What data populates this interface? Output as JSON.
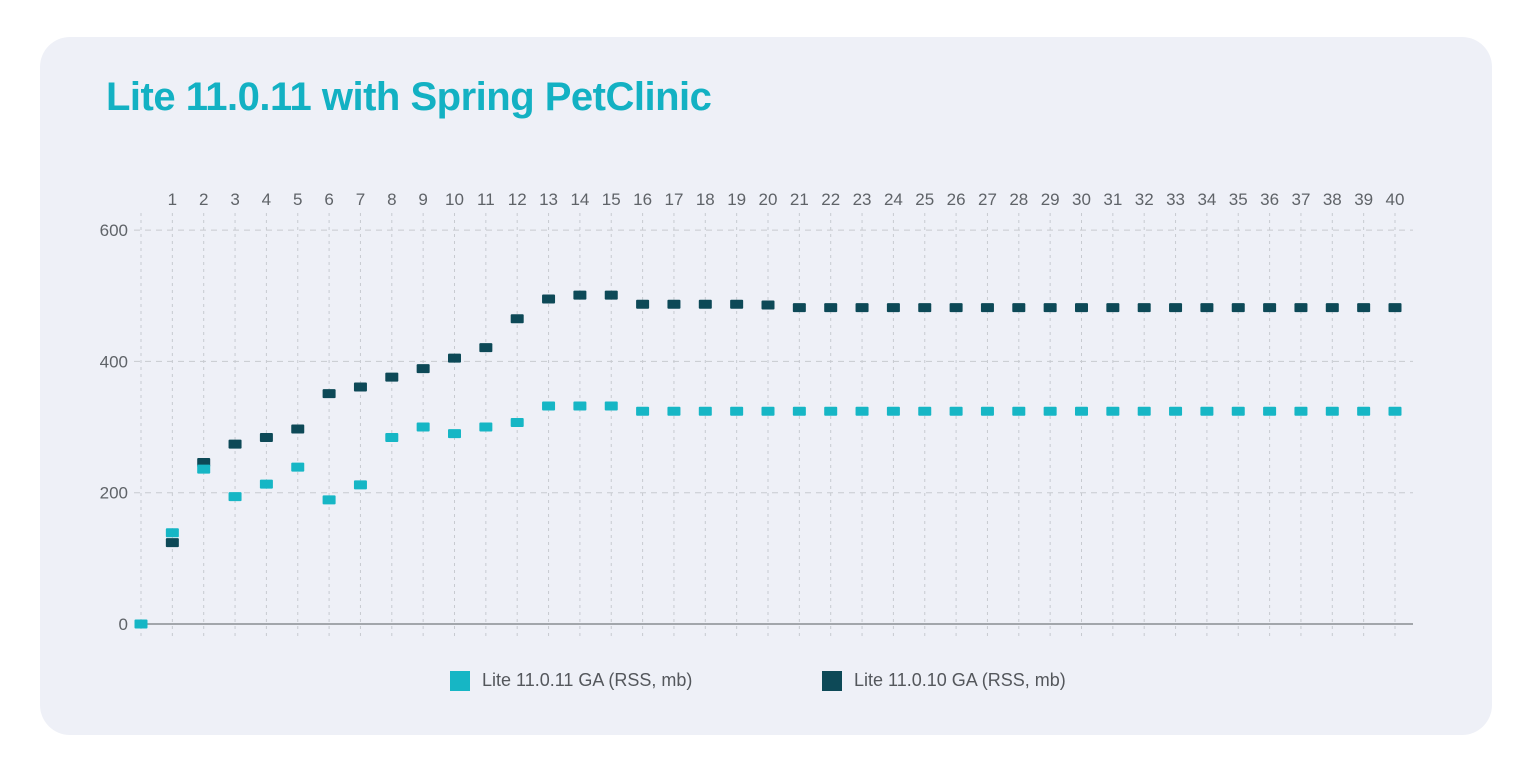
{
  "title": "Lite 11.0.11 with Spring PetClinic",
  "colors": {
    "title": "#13b1c3",
    "card_background": "#eef0f7",
    "grid_line": "#c7cad0",
    "axis_line": "#a2a6ab",
    "tick_label": "#5f6368",
    "legend_text": "#54575c",
    "series_lite_11_0_11": "#16b6c5",
    "series_lite_11_0_10": "#0d4957"
  },
  "legend": {
    "items": [
      {
        "label": "Lite 11.0.11 GA (RSS, mb)",
        "color": "#16b6c5"
      },
      {
        "label": "Lite 11.0.10 GA (RSS, mb)",
        "color": "#0d4957"
      }
    ]
  },
  "chart_data": {
    "type": "scatter",
    "title": "Lite 11.0.11 with Spring PetClinic",
    "xlabel": "",
    "ylabel": "",
    "x_ticks": [
      1,
      2,
      3,
      4,
      5,
      6,
      7,
      8,
      9,
      10,
      11,
      12,
      13,
      14,
      15,
      16,
      17,
      18,
      19,
      20,
      21,
      22,
      23,
      24,
      25,
      26,
      27,
      28,
      29,
      30,
      31,
      32,
      33,
      34,
      35,
      36,
      37,
      38,
      39,
      40
    ],
    "y_ticks": [
      0,
      200,
      400,
      600
    ],
    "xlim": [
      0,
      40.5
    ],
    "ylim": [
      0,
      660
    ],
    "grid": "dashed",
    "x_axis_position": "top-labels",
    "legend_position": "bottom",
    "point_shape": "square",
    "series": [
      {
        "name": "Lite 11.0.11 GA (RSS, mb)",
        "color": "#16b6c5",
        "points": [
          [
            0,
            0
          ],
          [
            1,
            139
          ],
          [
            2,
            236
          ],
          [
            3,
            194
          ],
          [
            4,
            213
          ],
          [
            5,
            239
          ],
          [
            6,
            189
          ],
          [
            7,
            212
          ],
          [
            8,
            284
          ],
          [
            9,
            300
          ],
          [
            10,
            290
          ],
          [
            11,
            300
          ],
          [
            12,
            307
          ],
          [
            13,
            332
          ],
          [
            14,
            332
          ],
          [
            15,
            332
          ],
          [
            16,
            324
          ],
          [
            17,
            324
          ],
          [
            18,
            324
          ],
          [
            19,
            324
          ],
          [
            20,
            324
          ],
          [
            21,
            324
          ],
          [
            22,
            324
          ],
          [
            23,
            324
          ],
          [
            24,
            324
          ],
          [
            25,
            324
          ],
          [
            26,
            324
          ],
          [
            27,
            324
          ],
          [
            28,
            324
          ],
          [
            29,
            324
          ],
          [
            30,
            324
          ],
          [
            31,
            324
          ],
          [
            32,
            324
          ],
          [
            33,
            324
          ],
          [
            34,
            324
          ],
          [
            35,
            324
          ],
          [
            36,
            324
          ],
          [
            37,
            324
          ],
          [
            38,
            324
          ],
          [
            39,
            324
          ],
          [
            40,
            324
          ]
        ]
      },
      {
        "name": "Lite 11.0.10 GA (RSS, mb)",
        "color": "#0d4957",
        "points": [
          [
            1,
            124
          ],
          [
            2,
            246
          ],
          [
            3,
            274
          ],
          [
            4,
            284
          ],
          [
            5,
            297
          ],
          [
            6,
            351
          ],
          [
            7,
            361
          ],
          [
            8,
            376
          ],
          [
            9,
            389
          ],
          [
            10,
            405
          ],
          [
            11,
            421
          ],
          [
            12,
            465
          ],
          [
            13,
            495
          ],
          [
            14,
            501
          ],
          [
            15,
            501
          ],
          [
            16,
            487
          ],
          [
            17,
            487
          ],
          [
            18,
            487
          ],
          [
            19,
            487
          ],
          [
            20,
            486
          ],
          [
            21,
            482
          ],
          [
            22,
            482
          ],
          [
            23,
            482
          ],
          [
            24,
            482
          ],
          [
            25,
            482
          ],
          [
            26,
            482
          ],
          [
            27,
            482
          ],
          [
            28,
            482
          ],
          [
            29,
            482
          ],
          [
            30,
            482
          ],
          [
            31,
            482
          ],
          [
            32,
            482
          ],
          [
            33,
            482
          ],
          [
            34,
            482
          ],
          [
            35,
            482
          ],
          [
            36,
            482
          ],
          [
            37,
            482
          ],
          [
            38,
            482
          ],
          [
            39,
            482
          ],
          [
            40,
            482
          ]
        ]
      }
    ]
  }
}
